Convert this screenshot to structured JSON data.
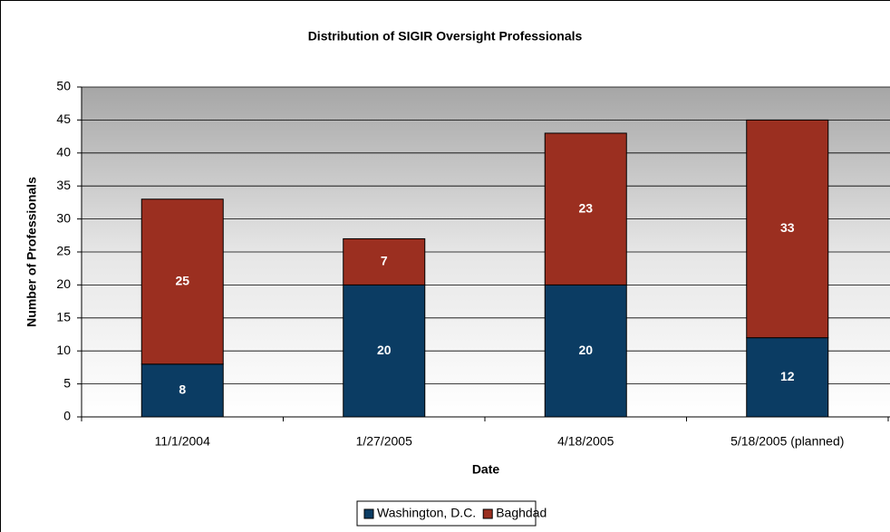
{
  "chart_data": {
    "type": "bar",
    "stacked": true,
    "title": "Distribution of SIGIR Oversight Professionals",
    "x_label": "Date",
    "y_label": "Number of Professionals",
    "categories": [
      "11/1/2004",
      "1/27/2005",
      "4/18/2005",
      "5/18/2005 (planned)"
    ],
    "series": [
      {
        "name": "Washington, D.C.",
        "color": "#0b3c63",
        "values": [
          8,
          20,
          20,
          12
        ]
      },
      {
        "name": "Baghdad",
        "color": "#9b2f20",
        "values": [
          25,
          7,
          23,
          33
        ]
      }
    ],
    "ylim": [
      0,
      50
    ],
    "yticks": [
      0,
      5,
      10,
      15,
      20,
      25,
      30,
      35,
      40,
      45,
      50
    ],
    "grid": true,
    "legend": "bottom"
  }
}
